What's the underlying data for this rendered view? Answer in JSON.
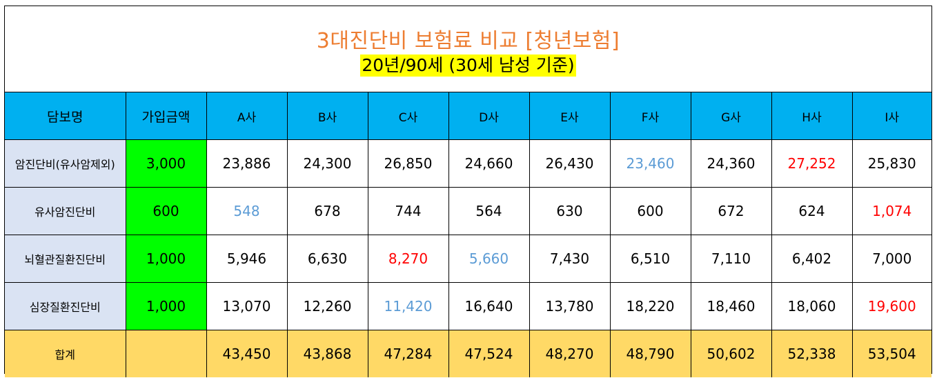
{
  "title": "3대진단비 보험료 비교 [청년보험]",
  "subtitle": "20년/90세 (30세 남성 기준)",
  "colors": {
    "title": "#ed7d31",
    "header_bg": "#00b0f0",
    "amount_bg": "#00ff00",
    "name_bg": "#dae3f3",
    "total_bg": "#ffd966",
    "lowest": "#5b9bd5",
    "highest": "#ff0000",
    "subtitle_bg": "#ffff00"
  },
  "header": {
    "name": "담보명",
    "amount": "가입금액",
    "companies": [
      "A사",
      "B사",
      "C사",
      "D사",
      "E사",
      "F사",
      "G사",
      "H사",
      "I사"
    ]
  },
  "rows": [
    {
      "name": "암진단비(유사암제외)",
      "amount": "3,000",
      "values": [
        "23,886",
        "24,300",
        "26,850",
        "24,660",
        "26,430",
        "23,460",
        "24,360",
        "27,252",
        "25,830"
      ],
      "lowest_index": 5,
      "highest_index": 7
    },
    {
      "name": "유사암진단비",
      "amount": "600",
      "values": [
        "548",
        "678",
        "744",
        "564",
        "630",
        "600",
        "672",
        "624",
        "1,074"
      ],
      "lowest_index": 0,
      "highest_index": 8
    },
    {
      "name": "뇌혈관질환진단비",
      "amount": "1,000",
      "values": [
        "5,946",
        "6,630",
        "8,270",
        "5,660",
        "7,430",
        "6,510",
        "7,110",
        "6,402",
        "7,000"
      ],
      "lowest_index": 3,
      "highest_index": 2
    },
    {
      "name": "심장질환진단비",
      "amount": "1,000",
      "values": [
        "13,070",
        "12,260",
        "11,420",
        "16,640",
        "13,780",
        "18,220",
        "18,460",
        "18,060",
        "19,600"
      ],
      "lowest_index": 2,
      "highest_index": 8
    }
  ],
  "total": {
    "name": "합계",
    "amount": "",
    "values": [
      "43,450",
      "43,868",
      "47,284",
      "47,524",
      "48,270",
      "48,790",
      "50,602",
      "52,338",
      "53,504"
    ]
  }
}
